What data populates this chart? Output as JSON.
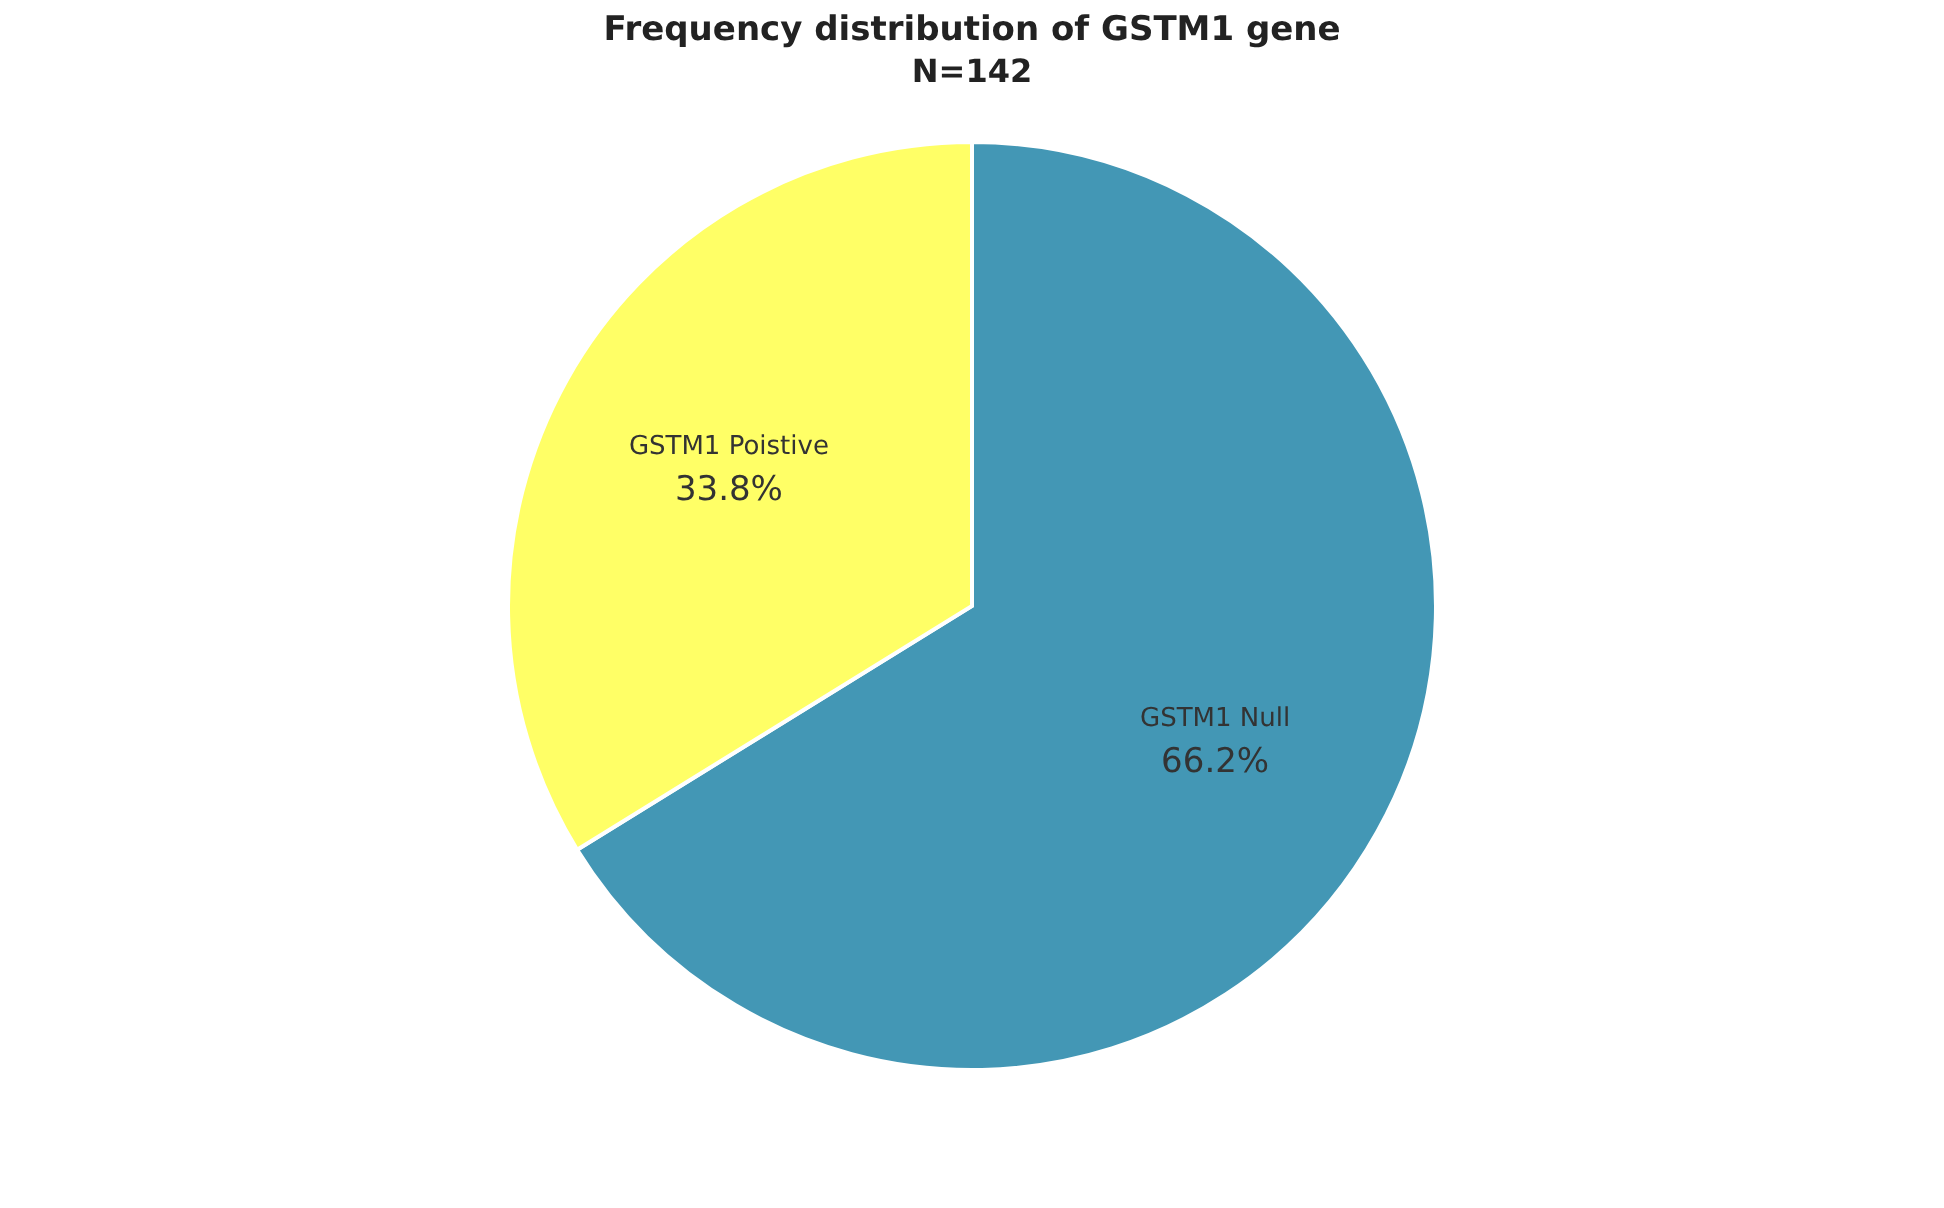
{
  "chart_data": {
    "type": "pie",
    "title": "Frequency distribution of GSTM1 gene",
    "subtitle": "N=142",
    "categories": [
      "GSTM1 Null",
      "GSTM1 Poistive"
    ],
    "values": [
      66.2,
      33.8
    ],
    "colors": [
      "#4397b5",
      "#ffff66"
    ],
    "value_labels": [
      "66.2%",
      "33.8%"
    ],
    "legend": false
  }
}
